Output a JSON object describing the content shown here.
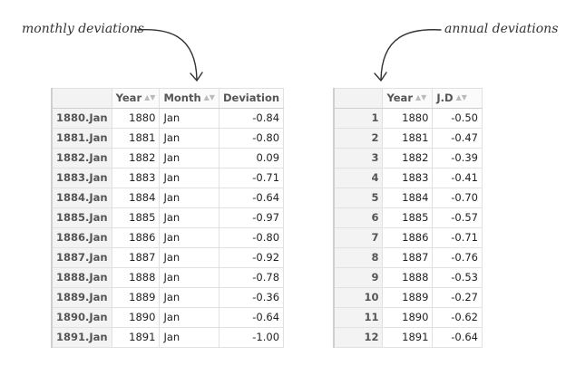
{
  "annotations": {
    "monthly": "monthly deviations",
    "annual": "annual deviations"
  },
  "monthly_table": {
    "columns": [
      "",
      "Year",
      "Month",
      "Deviation"
    ],
    "rows": [
      {
        "name": "1880.Jan",
        "year": "1880",
        "month": "Jan",
        "deviation": "-0.84"
      },
      {
        "name": "1881.Jan",
        "year": "1881",
        "month": "Jan",
        "deviation": "-0.80"
      },
      {
        "name": "1882.Jan",
        "year": "1882",
        "month": "Jan",
        "deviation": "0.09"
      },
      {
        "name": "1883.Jan",
        "year": "1883",
        "month": "Jan",
        "deviation": "-0.71"
      },
      {
        "name": "1884.Jan",
        "year": "1884",
        "month": "Jan",
        "deviation": "-0.64"
      },
      {
        "name": "1885.Jan",
        "year": "1885",
        "month": "Jan",
        "deviation": "-0.97"
      },
      {
        "name": "1886.Jan",
        "year": "1886",
        "month": "Jan",
        "deviation": "-0.80"
      },
      {
        "name": "1887.Jan",
        "year": "1887",
        "month": "Jan",
        "deviation": "-0.92"
      },
      {
        "name": "1888.Jan",
        "year": "1888",
        "month": "Jan",
        "deviation": "-0.78"
      },
      {
        "name": "1889.Jan",
        "year": "1889",
        "month": "Jan",
        "deviation": "-0.36"
      },
      {
        "name": "1890.Jan",
        "year": "1890",
        "month": "Jan",
        "deviation": "-0.64"
      },
      {
        "name": "1891.Jan",
        "year": "1891",
        "month": "Jan",
        "deviation": "-1.00"
      }
    ]
  },
  "annual_table": {
    "columns": [
      "",
      "Year",
      "J.D"
    ],
    "rows": [
      {
        "name": "1",
        "year": "1880",
        "jd": "-0.50"
      },
      {
        "name": "2",
        "year": "1881",
        "jd": "-0.47"
      },
      {
        "name": "3",
        "year": "1882",
        "jd": "-0.39"
      },
      {
        "name": "4",
        "year": "1883",
        "jd": "-0.41"
      },
      {
        "name": "5",
        "year": "1884",
        "jd": "-0.70"
      },
      {
        "name": "6",
        "year": "1885",
        "jd": "-0.57"
      },
      {
        "name": "7",
        "year": "1886",
        "jd": "-0.71"
      },
      {
        "name": "8",
        "year": "1887",
        "jd": "-0.76"
      },
      {
        "name": "9",
        "year": "1888",
        "jd": "-0.53"
      },
      {
        "name": "10",
        "year": "1889",
        "jd": "-0.27"
      },
      {
        "name": "11",
        "year": "1890",
        "jd": "-0.62"
      },
      {
        "name": "12",
        "year": "1891",
        "jd": "-0.64"
      }
    ]
  }
}
